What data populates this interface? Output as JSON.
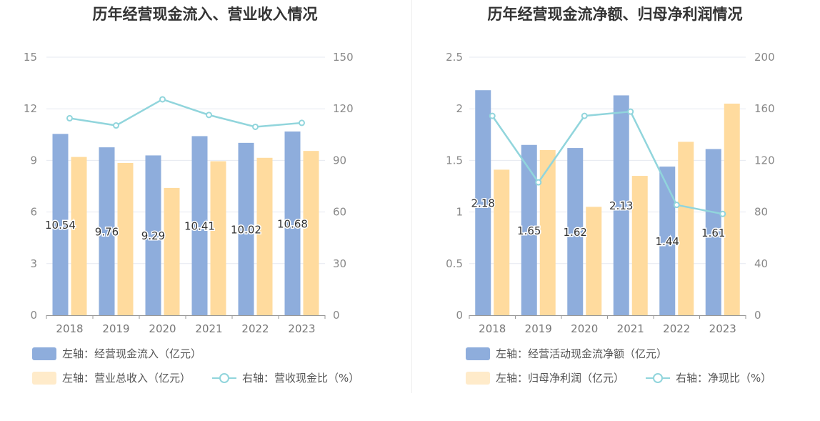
{
  "colors": {
    "bar1": "#8eaddc",
    "bar2": "#ffdb9e",
    "line": "#91d5dc",
    "grid": "#e6e9f0",
    "axis": "#999999"
  },
  "chart_data": [
    {
      "type": "bar",
      "title": "历年经营现金流入、营业收入情况",
      "categories": [
        "2018",
        "2019",
        "2020",
        "2021",
        "2022",
        "2023"
      ],
      "y_left": {
        "min": 0,
        "max": 15,
        "ticks": [
          "0",
          "3",
          "6",
          "9",
          "12",
          "15"
        ]
      },
      "y_right": {
        "min": 0,
        "max": 150,
        "ticks": [
          "0",
          "30",
          "60",
          "90",
          "120",
          "150"
        ]
      },
      "series": [
        {
          "name": "左轴：经营现金流入（亿元）",
          "type": "bar",
          "axis": "left",
          "values": [
            10.54,
            9.76,
            9.29,
            10.41,
            10.02,
            10.68
          ],
          "labels": [
            "10.54",
            "9.76",
            "9.29",
            "10.41",
            "10.02",
            "10.68"
          ]
        },
        {
          "name": "左轴：营业总收入（亿元）",
          "type": "bar",
          "axis": "left",
          "values": [
            9.2,
            8.85,
            7.4,
            8.95,
            9.15,
            9.55
          ]
        },
        {
          "name": "右轴：营收现金比（%）",
          "type": "line",
          "axis": "right",
          "values": [
            114.5,
            110.3,
            125.5,
            116.4,
            109.5,
            111.8
          ]
        }
      ]
    },
    {
      "type": "bar",
      "title": "历年经营现金流净额、归母净利润情况",
      "categories": [
        "2018",
        "2019",
        "2020",
        "2021",
        "2022",
        "2023"
      ],
      "y_left": {
        "min": 0,
        "max": 2.5,
        "ticks": [
          "0",
          "0.5",
          "1",
          "1.5",
          "2",
          "2.5"
        ]
      },
      "y_right": {
        "min": 0,
        "max": 200,
        "ticks": [
          "0",
          "40",
          "80",
          "120",
          "160",
          "200"
        ]
      },
      "series": [
        {
          "name": "左轴：经营活动现金流净额（亿元）",
          "type": "bar",
          "axis": "left",
          "values": [
            2.18,
            1.65,
            1.62,
            2.13,
            1.44,
            1.61
          ],
          "labels": [
            "2.18",
            "1.65",
            "1.62",
            "2.13",
            "1.44",
            "1.61"
          ]
        },
        {
          "name": "左轴：归母净利润（亿元）",
          "type": "bar",
          "axis": "left",
          "values": [
            1.41,
            1.6,
            1.05,
            1.35,
            1.68,
            2.05
          ]
        },
        {
          "name": "右轴：净现比（%）",
          "type": "line",
          "axis": "right",
          "values": [
            154.5,
            103.0,
            154.5,
            157.8,
            85.5,
            78.5
          ]
        }
      ]
    }
  ]
}
